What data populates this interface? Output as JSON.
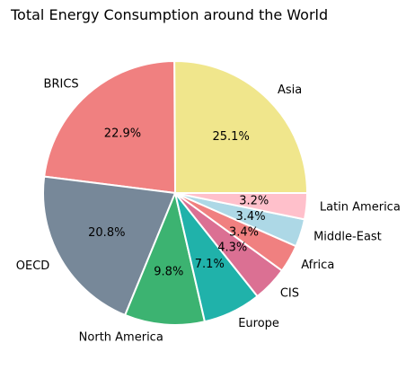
{
  "chart_data": {
    "type": "pie",
    "title": "Total Energy Consumption around the World",
    "categories": [
      "Asia",
      "BRICS",
      "OECD",
      "North America",
      "Europe",
      "CIS",
      "Africa",
      "Middle-East",
      "Latin America"
    ],
    "values": [
      25.1,
      22.9,
      20.8,
      9.8,
      7.1,
      4.3,
      3.4,
      3.4,
      3.2
    ],
    "value_labels": [
      "25.1%",
      "22.9%",
      "20.8%",
      "9.8%",
      "7.1%",
      "4.3%",
      "3.4%",
      "3.4%",
      "3.2%"
    ],
    "colors": [
      "#F0E68C",
      "#F08080",
      "#778899",
      "#3CB371",
      "#20B2AA",
      "#DB7093",
      "#F08080",
      "#ADD8E6",
      "#FFC0CB"
    ],
    "start_angle_deg": 0,
    "direction": "counterclockwise",
    "legend": "none"
  }
}
